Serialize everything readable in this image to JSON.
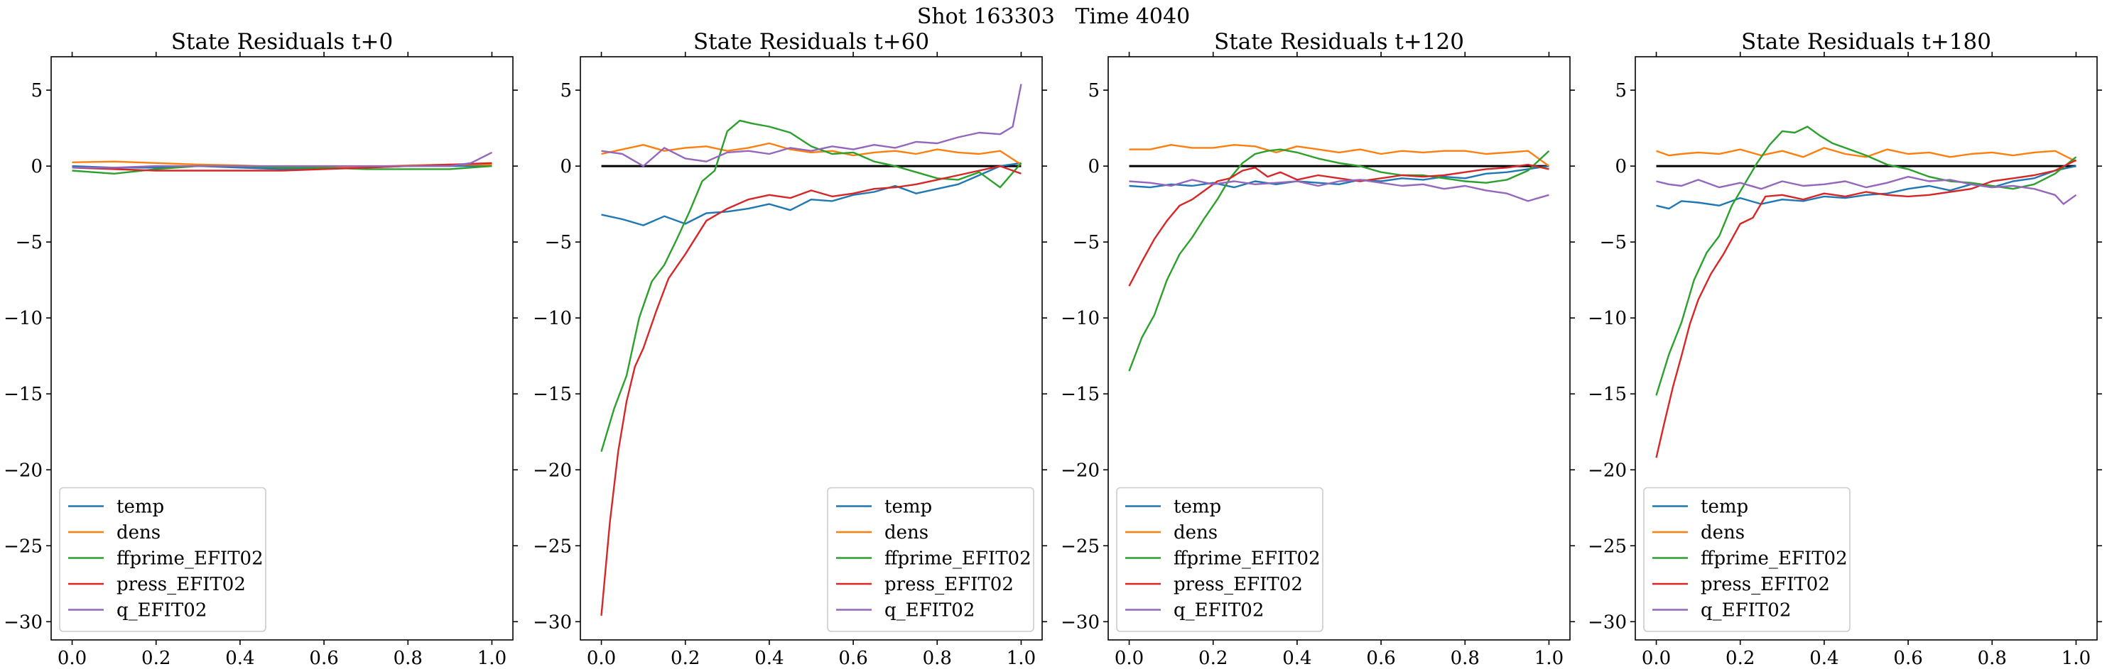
{
  "figure": {
    "suptitle": "Shot 163303   Time 4040"
  },
  "colors": {
    "temp": "#1f77b4",
    "dens": "#ff7f0e",
    "ffprime_EFIT02": "#2ca02c",
    "press_EFIT02": "#d62728",
    "q_EFIT02": "#9467bd",
    "zero_line": "#000000"
  },
  "chart_data": [
    {
      "type": "line",
      "title": "State Residuals t+0",
      "xlim": [
        -0.05,
        1.05
      ],
      "ylim": [
        -31.2,
        7.2
      ],
      "x_ticks": [
        0.0,
        0.2,
        0.4,
        0.6,
        0.8,
        1.0
      ],
      "x_tick_labels": [
        "0.0",
        "0.2",
        "0.4",
        "0.6",
        "0.8",
        "1.0"
      ],
      "y_ticks": [
        5,
        0,
        -5,
        -10,
        -15,
        -20,
        -25,
        -30
      ],
      "y_tick_labels": [
        "5",
        "0",
        "−5",
        "−10",
        "−15",
        "−20",
        "−25",
        "−30"
      ],
      "legend_position": "lower-left",
      "zero_line": false,
      "series": [
        {
          "name": "temp",
          "x": [
            0.0,
            0.1,
            0.2,
            0.3,
            0.4,
            0.5,
            0.6,
            0.7,
            0.8,
            0.9,
            1.0
          ],
          "values": [
            0.0,
            -0.1,
            -0.1,
            0.0,
            -0.1,
            -0.2,
            -0.1,
            -0.1,
            0.0,
            0.0,
            0.0
          ]
        },
        {
          "name": "dens",
          "x": [
            0.0,
            0.1,
            0.2,
            0.3,
            0.4,
            0.5,
            0.6,
            0.7,
            0.8,
            0.9,
            1.0
          ],
          "values": [
            0.25,
            0.3,
            0.2,
            0.1,
            0.05,
            -0.05,
            -0.1,
            -0.05,
            0.05,
            0.1,
            0.1
          ]
        },
        {
          "name": "ffprime_EFIT02",
          "x": [
            0.0,
            0.05,
            0.1,
            0.2,
            0.3,
            0.4,
            0.5,
            0.6,
            0.7,
            0.8,
            0.9,
            1.0
          ],
          "values": [
            -0.3,
            -0.4,
            -0.5,
            -0.2,
            0.0,
            0.0,
            -0.1,
            -0.1,
            -0.2,
            -0.2,
            -0.2,
            0.0
          ]
        },
        {
          "name": "press_EFIT02",
          "x": [
            0.0,
            0.1,
            0.2,
            0.3,
            0.4,
            0.5,
            0.6,
            0.7,
            0.8,
            0.9,
            1.0
          ],
          "values": [
            -0.1,
            -0.2,
            -0.3,
            -0.3,
            -0.3,
            -0.3,
            -0.2,
            -0.1,
            0.0,
            0.1,
            0.2
          ]
        },
        {
          "name": "q_EFIT02",
          "x": [
            0.0,
            0.1,
            0.2,
            0.3,
            0.4,
            0.5,
            0.6,
            0.7,
            0.8,
            0.9,
            0.95,
            1.0
          ],
          "values": [
            -0.1,
            -0.1,
            0.0,
            0.0,
            0.0,
            0.0,
            0.0,
            0.0,
            0.0,
            0.0,
            0.2,
            0.9
          ]
        }
      ]
    },
    {
      "type": "line",
      "title": "State Residuals t+60",
      "xlim": [
        -0.05,
        1.05
      ],
      "ylim": [
        -31.2,
        7.2
      ],
      "x_ticks": [
        0.0,
        0.2,
        0.4,
        0.6,
        0.8,
        1.0
      ],
      "x_tick_labels": [
        "0.0",
        "0.2",
        "0.4",
        "0.6",
        "0.8",
        "1.0"
      ],
      "y_ticks": [
        5,
        0,
        -5,
        -10,
        -15,
        -20,
        -25,
        -30
      ],
      "y_tick_labels": [
        "5",
        "0",
        "−5",
        "−10",
        "−15",
        "−20",
        "−25",
        "−30"
      ],
      "legend_position": "lower-right",
      "zero_line": true,
      "series": [
        {
          "name": "temp",
          "x": [
            0.0,
            0.05,
            0.1,
            0.15,
            0.2,
            0.25,
            0.3,
            0.35,
            0.4,
            0.45,
            0.5,
            0.55,
            0.6,
            0.65,
            0.7,
            0.75,
            0.8,
            0.85,
            0.9,
            0.95,
            1.0
          ],
          "values": [
            -3.2,
            -3.5,
            -3.9,
            -3.3,
            -3.8,
            -3.1,
            -3.0,
            -2.8,
            -2.5,
            -2.9,
            -2.2,
            -2.3,
            -1.9,
            -1.7,
            -1.3,
            -1.8,
            -1.5,
            -1.2,
            -0.6,
            0.0,
            0.2
          ]
        },
        {
          "name": "dens",
          "x": [
            0.0,
            0.05,
            0.1,
            0.15,
            0.2,
            0.25,
            0.3,
            0.35,
            0.4,
            0.45,
            0.5,
            0.55,
            0.6,
            0.65,
            0.7,
            0.75,
            0.8,
            0.85,
            0.9,
            0.95,
            1.0
          ],
          "values": [
            0.8,
            1.1,
            1.4,
            1.0,
            1.2,
            1.3,
            1.0,
            1.2,
            1.5,
            1.1,
            0.9,
            1.0,
            0.7,
            0.9,
            1.0,
            0.8,
            1.1,
            0.9,
            0.8,
            1.0,
            0.1
          ]
        },
        {
          "name": "ffprime_EFIT02",
          "x": [
            0.0,
            0.03,
            0.06,
            0.09,
            0.12,
            0.15,
            0.18,
            0.21,
            0.24,
            0.27,
            0.3,
            0.33,
            0.36,
            0.4,
            0.45,
            0.5,
            0.55,
            0.6,
            0.65,
            0.7,
            0.75,
            0.8,
            0.85,
            0.9,
            0.95,
            1.0
          ],
          "values": [
            -18.8,
            -16.0,
            -13.8,
            -10.0,
            -7.6,
            -6.5,
            -4.8,
            -3.0,
            -1.0,
            -0.3,
            2.3,
            3.0,
            2.8,
            2.6,
            2.2,
            1.3,
            0.8,
            0.9,
            0.3,
            0.0,
            -0.4,
            -0.8,
            -0.9,
            -0.4,
            -1.4,
            0.2
          ]
        },
        {
          "name": "press_EFIT02",
          "x": [
            0.0,
            0.02,
            0.04,
            0.06,
            0.08,
            0.1,
            0.13,
            0.16,
            0.2,
            0.25,
            0.3,
            0.35,
            0.4,
            0.45,
            0.5,
            0.55,
            0.6,
            0.65,
            0.7,
            0.75,
            0.8,
            0.85,
            0.9,
            0.95,
            1.0
          ],
          "values": [
            -29.6,
            -23.5,
            -18.8,
            -15.5,
            -13.2,
            -12.0,
            -9.6,
            -7.4,
            -5.8,
            -3.6,
            -2.8,
            -2.2,
            -1.9,
            -2.1,
            -1.6,
            -2.0,
            -1.8,
            -1.5,
            -1.4,
            -1.2,
            -0.9,
            -0.6,
            -0.3,
            0.0,
            -0.5
          ]
        },
        {
          "name": "q_EFIT02",
          "x": [
            0.0,
            0.05,
            0.1,
            0.15,
            0.2,
            0.25,
            0.3,
            0.35,
            0.4,
            0.45,
            0.5,
            0.55,
            0.6,
            0.65,
            0.7,
            0.75,
            0.8,
            0.85,
            0.9,
            0.95,
            0.98,
            1.0
          ],
          "values": [
            1.0,
            0.8,
            0.0,
            1.2,
            0.5,
            0.3,
            0.9,
            1.0,
            0.8,
            1.2,
            1.0,
            1.3,
            1.1,
            1.4,
            1.2,
            1.6,
            1.5,
            1.9,
            2.2,
            2.1,
            2.6,
            5.4
          ]
        }
      ]
    },
    {
      "type": "line",
      "title": "State Residuals t+120",
      "xlim": [
        -0.05,
        1.05
      ],
      "ylim": [
        -31.2,
        7.2
      ],
      "x_ticks": [
        0.0,
        0.2,
        0.4,
        0.6,
        0.8,
        1.0
      ],
      "x_tick_labels": [
        "0.0",
        "0.2",
        "0.4",
        "0.6",
        "0.8",
        "1.0"
      ],
      "y_ticks": [
        5,
        0,
        -5,
        -10,
        -15,
        -20,
        -25,
        -30
      ],
      "y_tick_labels": [
        "5",
        "0",
        "−5",
        "−10",
        "−15",
        "−20",
        "−25",
        "−30"
      ],
      "legend_position": "lower-left",
      "zero_line": true,
      "series": [
        {
          "name": "temp",
          "x": [
            0.0,
            0.05,
            0.1,
            0.15,
            0.2,
            0.25,
            0.3,
            0.35,
            0.4,
            0.45,
            0.5,
            0.55,
            0.6,
            0.65,
            0.7,
            0.75,
            0.8,
            0.85,
            0.9,
            0.95,
            1.0
          ],
          "values": [
            -1.3,
            -1.4,
            -1.2,
            -1.3,
            -1.1,
            -1.4,
            -1.0,
            -1.2,
            -1.0,
            -1.1,
            -1.2,
            -0.9,
            -1.0,
            -0.8,
            -0.9,
            -0.7,
            -0.8,
            -0.5,
            -0.4,
            -0.2,
            0.0
          ]
        },
        {
          "name": "dens",
          "x": [
            0.0,
            0.05,
            0.1,
            0.15,
            0.2,
            0.25,
            0.3,
            0.35,
            0.4,
            0.45,
            0.5,
            0.55,
            0.6,
            0.65,
            0.7,
            0.75,
            0.8,
            0.85,
            0.9,
            0.95,
            1.0
          ],
          "values": [
            1.1,
            1.1,
            1.4,
            1.2,
            1.2,
            1.4,
            1.3,
            0.9,
            1.3,
            1.1,
            0.9,
            1.1,
            0.8,
            1.0,
            0.9,
            1.0,
            1.0,
            0.8,
            0.9,
            1.0,
            0.0
          ]
        },
        {
          "name": "ffprime_EFIT02",
          "x": [
            0.0,
            0.03,
            0.06,
            0.09,
            0.12,
            0.15,
            0.18,
            0.21,
            0.24,
            0.27,
            0.3,
            0.33,
            0.36,
            0.4,
            0.45,
            0.5,
            0.55,
            0.6,
            0.65,
            0.7,
            0.75,
            0.8,
            0.85,
            0.9,
            0.95,
            1.0
          ],
          "values": [
            -13.5,
            -11.3,
            -9.8,
            -7.5,
            -5.8,
            -4.7,
            -3.4,
            -2.2,
            -0.8,
            0.2,
            0.8,
            1.0,
            1.1,
            0.9,
            0.5,
            0.2,
            0.0,
            -0.4,
            -0.6,
            -0.6,
            -0.8,
            -1.0,
            -1.1,
            -0.9,
            -0.3,
            1.0
          ]
        },
        {
          "name": "press_EFIT02",
          "x": [
            0.0,
            0.03,
            0.06,
            0.09,
            0.12,
            0.15,
            0.18,
            0.21,
            0.24,
            0.27,
            0.3,
            0.33,
            0.36,
            0.4,
            0.45,
            0.5,
            0.55,
            0.6,
            0.65,
            0.7,
            0.75,
            0.8,
            0.85,
            0.9,
            0.95,
            1.0
          ],
          "values": [
            -7.9,
            -6.3,
            -4.8,
            -3.6,
            -2.6,
            -2.2,
            -1.6,
            -1.0,
            -0.8,
            -0.3,
            -0.1,
            -0.7,
            -0.4,
            -0.9,
            -0.6,
            -0.8,
            -1.0,
            -0.8,
            -0.6,
            -0.7,
            -0.6,
            -0.4,
            -0.2,
            -0.1,
            0.1,
            -0.2
          ]
        },
        {
          "name": "q_EFIT02",
          "x": [
            0.0,
            0.05,
            0.1,
            0.15,
            0.2,
            0.25,
            0.3,
            0.35,
            0.4,
            0.45,
            0.5,
            0.55,
            0.6,
            0.65,
            0.7,
            0.75,
            0.8,
            0.85,
            0.9,
            0.95,
            1.0
          ],
          "values": [
            -1.0,
            -1.1,
            -1.3,
            -0.9,
            -1.2,
            -1.0,
            -1.2,
            -1.1,
            -1.0,
            -1.3,
            -1.0,
            -0.9,
            -1.1,
            -1.3,
            -1.2,
            -1.5,
            -1.3,
            -1.6,
            -1.8,
            -2.3,
            -1.9
          ]
        }
      ]
    },
    {
      "type": "line",
      "title": "State Residuals t+180",
      "xlim": [
        -0.05,
        1.05
      ],
      "ylim": [
        -31.2,
        7.2
      ],
      "x_ticks": [
        0.0,
        0.2,
        0.4,
        0.6,
        0.8,
        1.0
      ],
      "x_tick_labels": [
        "0.0",
        "0.2",
        "0.4",
        "0.6",
        "0.8",
        "1.0"
      ],
      "y_ticks": [
        5,
        0,
        -5,
        -10,
        -15,
        -20,
        -25,
        -30
      ],
      "y_tick_labels": [
        "5",
        "0",
        "−5",
        "−10",
        "−15",
        "−20",
        "−25",
        "−30"
      ],
      "legend_position": "lower-left",
      "zero_line": true,
      "series": [
        {
          "name": "temp",
          "x": [
            0.0,
            0.03,
            0.06,
            0.1,
            0.15,
            0.2,
            0.25,
            0.3,
            0.35,
            0.4,
            0.45,
            0.5,
            0.55,
            0.6,
            0.65,
            0.7,
            0.75,
            0.8,
            0.85,
            0.9,
            0.95,
            1.0
          ],
          "values": [
            -2.6,
            -2.8,
            -2.3,
            -2.4,
            -2.6,
            -2.1,
            -2.5,
            -2.2,
            -2.3,
            -2.0,
            -2.1,
            -1.9,
            -1.8,
            -1.5,
            -1.3,
            -1.6,
            -1.2,
            -1.4,
            -1.0,
            -0.8,
            -0.3,
            0.0
          ]
        },
        {
          "name": "dens",
          "x": [
            0.0,
            0.03,
            0.06,
            0.1,
            0.15,
            0.2,
            0.25,
            0.3,
            0.35,
            0.4,
            0.45,
            0.5,
            0.55,
            0.6,
            0.65,
            0.7,
            0.75,
            0.8,
            0.85,
            0.9,
            0.95,
            1.0
          ],
          "values": [
            1.0,
            0.7,
            0.8,
            0.9,
            0.8,
            1.1,
            0.7,
            1.0,
            0.6,
            1.2,
            0.8,
            0.6,
            1.1,
            0.8,
            0.9,
            0.6,
            0.8,
            0.9,
            0.7,
            0.9,
            1.0,
            0.3
          ]
        },
        {
          "name": "ffprime_EFIT02",
          "x": [
            0.0,
            0.03,
            0.06,
            0.09,
            0.12,
            0.15,
            0.18,
            0.21,
            0.24,
            0.27,
            0.3,
            0.33,
            0.36,
            0.39,
            0.42,
            0.45,
            0.5,
            0.55,
            0.6,
            0.65,
            0.7,
            0.75,
            0.8,
            0.85,
            0.9,
            0.95,
            1.0
          ],
          "values": [
            -15.1,
            -12.4,
            -10.3,
            -7.5,
            -5.7,
            -4.6,
            -2.6,
            -1.2,
            0.2,
            1.4,
            2.3,
            2.2,
            2.6,
            2.0,
            1.5,
            1.2,
            0.7,
            0.1,
            -0.2,
            -0.7,
            -1.0,
            -1.1,
            -1.3,
            -1.5,
            -1.2,
            -0.5,
            0.6
          ]
        },
        {
          "name": "press_EFIT02",
          "x": [
            0.0,
            0.02,
            0.04,
            0.06,
            0.08,
            0.1,
            0.13,
            0.16,
            0.2,
            0.23,
            0.26,
            0.3,
            0.35,
            0.4,
            0.45,
            0.5,
            0.55,
            0.6,
            0.65,
            0.7,
            0.75,
            0.8,
            0.85,
            0.9,
            0.95,
            1.0
          ],
          "values": [
            -19.2,
            -16.8,
            -14.5,
            -12.5,
            -10.4,
            -8.8,
            -7.1,
            -5.8,
            -3.8,
            -3.4,
            -2.0,
            -1.9,
            -2.2,
            -1.8,
            -2.0,
            -1.7,
            -1.9,
            -2.0,
            -1.9,
            -1.7,
            -1.5,
            -1.0,
            -0.8,
            -0.6,
            -0.3,
            0.4
          ]
        },
        {
          "name": "q_EFIT02",
          "x": [
            0.0,
            0.03,
            0.06,
            0.1,
            0.15,
            0.2,
            0.25,
            0.3,
            0.35,
            0.4,
            0.45,
            0.5,
            0.55,
            0.6,
            0.65,
            0.7,
            0.75,
            0.8,
            0.85,
            0.9,
            0.95,
            0.97,
            1.0
          ],
          "values": [
            -1.0,
            -1.2,
            -1.3,
            -0.9,
            -1.4,
            -1.1,
            -1.5,
            -1.0,
            -1.3,
            -1.2,
            -1.0,
            -1.4,
            -1.1,
            -0.7,
            -1.0,
            -0.9,
            -1.2,
            -1.4,
            -1.3,
            -1.5,
            -1.9,
            -2.5,
            -1.9
          ]
        }
      ]
    }
  ]
}
